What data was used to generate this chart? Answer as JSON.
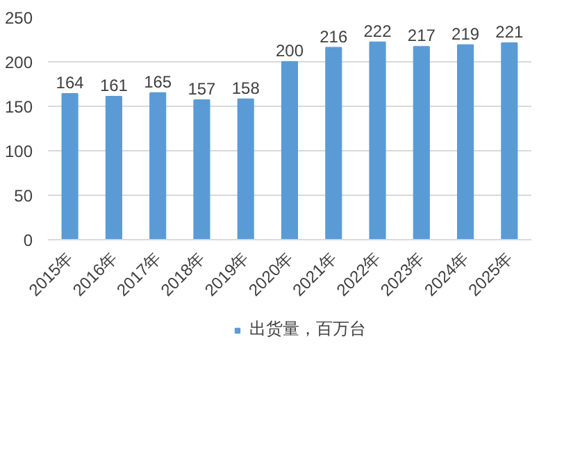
{
  "chart_data": {
    "type": "bar",
    "categories": [
      "2015年",
      "2016年",
      "2017年",
      "2018年",
      "2019年",
      "2020年",
      "2021年",
      "2022年",
      "2023年",
      "2024年",
      "2025年"
    ],
    "series": [
      {
        "name": "出货量，百万台",
        "color": "#5b9bd5",
        "values": [
          164,
          161,
          165,
          157,
          158,
          200,
          216,
          222,
          217,
          219,
          221
        ]
      }
    ],
    "ylim": [
      0,
      250
    ],
    "yticks": [
      0,
      50,
      100,
      150,
      200,
      250
    ],
    "grid": "y",
    "legend": "bottom",
    "data_labels": true
  }
}
